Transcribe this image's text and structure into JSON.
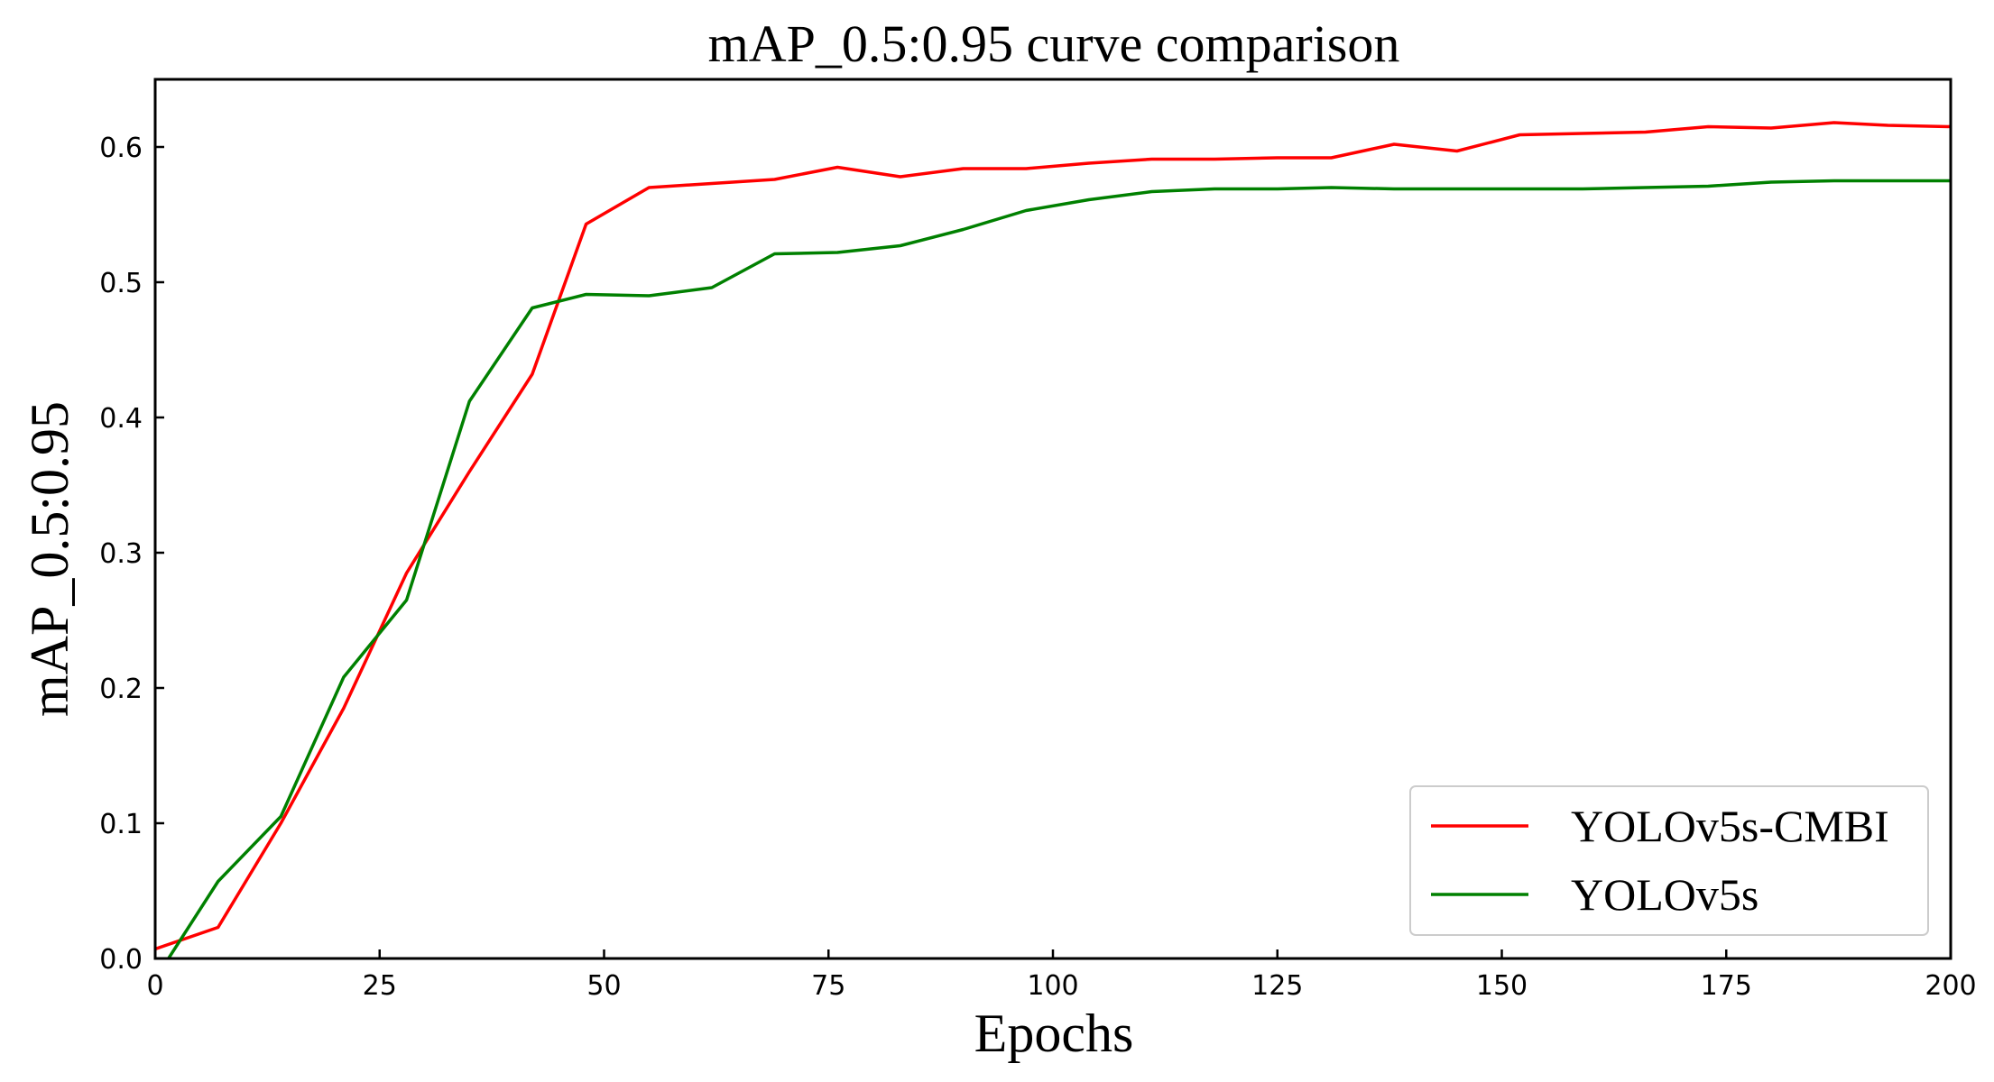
{
  "chart_data": {
    "type": "line",
    "title": "mAP_0.5:0.95 curve comparison",
    "xlabel": "Epochs",
    "ylabel": "mAP_0.5:0.95",
    "xlim": [
      0,
      200
    ],
    "ylim": [
      0,
      0.65
    ],
    "x_ticks": [
      0,
      25,
      50,
      75,
      100,
      125,
      150,
      175,
      200
    ],
    "x_tick_labels": [
      "0",
      "25",
      "50",
      "75",
      "100",
      "125",
      "150",
      "175",
      "200"
    ],
    "y_ticks": [
      0.0,
      0.1,
      0.2,
      0.3,
      0.4,
      0.5,
      0.6
    ],
    "y_tick_labels": [
      "0.0",
      "0.1",
      "0.2",
      "0.3",
      "0.4",
      "0.5",
      "0.6"
    ],
    "grid": false,
    "legend_position": "bottom-right",
    "series": [
      {
        "name": "YOLOv5s-CMBI",
        "color": "#ff0000",
        "x": [
          0,
          7,
          14,
          21,
          28,
          35,
          42,
          48,
          55,
          62,
          69,
          76,
          83,
          90,
          97,
          104,
          111,
          118,
          125,
          131,
          138,
          145,
          152,
          159,
          166,
          173,
          180,
          187,
          193,
          200
        ],
        "y": [
          0.007,
          0.023,
          0.1,
          0.185,
          0.285,
          0.36,
          0.432,
          0.543,
          0.57,
          0.573,
          0.576,
          0.585,
          0.578,
          0.584,
          0.584,
          0.588,
          0.591,
          0.591,
          0.592,
          0.592,
          0.602,
          0.597,
          0.609,
          0.61,
          0.611,
          0.615,
          0.614,
          0.618,
          0.616,
          0.615
        ]
      },
      {
        "name": "YOLOv5s",
        "color": "#008000",
        "x": [
          0,
          1,
          7,
          14,
          21,
          28,
          35,
          42,
          48,
          55,
          62,
          69,
          76,
          83,
          90,
          97,
          104,
          111,
          118,
          125,
          131,
          138,
          145,
          152,
          159,
          166,
          173,
          180,
          187,
          193,
          200
        ],
        "y": [
          0.0,
          -0.005,
          0.057,
          0.105,
          0.208,
          0.265,
          0.412,
          0.481,
          0.491,
          0.49,
          0.496,
          0.521,
          0.522,
          0.527,
          0.539,
          0.553,
          0.561,
          0.567,
          0.569,
          0.569,
          0.57,
          0.569,
          0.569,
          0.569,
          0.569,
          0.57,
          0.571,
          0.574,
          0.575,
          0.575,
          0.575
        ]
      }
    ]
  }
}
